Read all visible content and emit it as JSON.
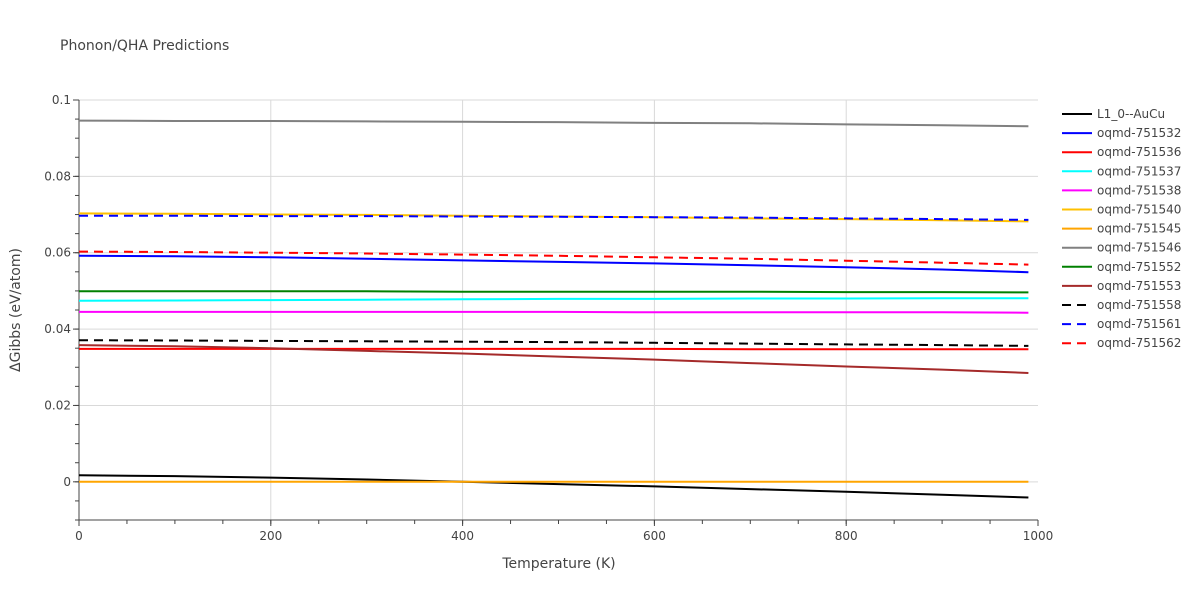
{
  "chart_data": {
    "type": "line",
    "title": "Phonon/QHA Predictions",
    "xlabel": "Temperature (K)",
    "ylabel": "ΔGibbs (eV/atom)",
    "xlim": [
      0,
      1000
    ],
    "ylim": [
      -0.01,
      0.1
    ],
    "xticks": [
      0,
      200,
      400,
      600,
      800,
      1000
    ],
    "xtick_labels": [
      "0",
      "200",
      "400",
      "600",
      "800",
      "1000"
    ],
    "yticks": [
      0,
      0.02,
      0.04,
      0.06,
      0.08,
      0.1
    ],
    "ytick_labels": [
      "0",
      "0.02",
      "0.04",
      "0.06",
      "0.08",
      "0.1"
    ],
    "grid": true,
    "legend_position": "right",
    "x": [
      0,
      100,
      200,
      300,
      400,
      500,
      600,
      700,
      800,
      900,
      990
    ],
    "series": [
      {
        "name": "L1_0--AuCu",
        "color": "#000000",
        "dash": "solid",
        "values": [
          0.0017,
          0.0015,
          0.0011,
          0.0006,
          0.0,
          -0.0006,
          -0.0012,
          -0.0019,
          -0.0026,
          -0.0034,
          -0.0041
        ]
      },
      {
        "name": "oqmd-751532",
        "color": "#0000ff",
        "dash": "solid",
        "values": [
          0.0592,
          0.0591,
          0.0588,
          0.0584,
          0.058,
          0.0576,
          0.0572,
          0.0567,
          0.0562,
          0.0556,
          0.0549
        ]
      },
      {
        "name": "oqmd-751536",
        "color": "#ff0000",
        "dash": "solid",
        "values": [
          0.0348,
          0.0348,
          0.0348,
          0.0348,
          0.0348,
          0.0348,
          0.0348,
          0.0347,
          0.0347,
          0.0347,
          0.0347
        ]
      },
      {
        "name": "oqmd-751537",
        "color": "#00ffff",
        "dash": "solid",
        "values": [
          0.0474,
          0.0475,
          0.0476,
          0.0477,
          0.0478,
          0.0479,
          0.0479,
          0.048,
          0.048,
          0.0481,
          0.0481
        ]
      },
      {
        "name": "oqmd-751538",
        "color": "#ff00ff",
        "dash": "solid",
        "values": [
          0.0445,
          0.0445,
          0.0445,
          0.0445,
          0.0445,
          0.0445,
          0.0444,
          0.0444,
          0.0444,
          0.0444,
          0.0443
        ]
      },
      {
        "name": "oqmd-751540",
        "color": "#ffc000",
        "dash": "solid",
        "values": [
          0.0703,
          0.0702,
          0.07,
          0.0699,
          0.0697,
          0.0695,
          0.0693,
          0.069,
          0.0688,
          0.0685,
          0.0682
        ]
      },
      {
        "name": "oqmd-751545",
        "color": "#ffa500",
        "dash": "solid",
        "values": [
          0.0,
          0.0,
          0.0,
          0.0,
          0.0,
          0.0,
          0.0,
          0.0,
          0.0,
          0.0,
          0.0
        ]
      },
      {
        "name": "oqmd-751546",
        "color": "#808080",
        "dash": "solid",
        "values": [
          0.0946,
          0.0945,
          0.0945,
          0.0944,
          0.0943,
          0.0942,
          0.094,
          0.0939,
          0.0936,
          0.0934,
          0.0931
        ]
      },
      {
        "name": "oqmd-751552",
        "color": "#008000",
        "dash": "solid",
        "values": [
          0.0499,
          0.0499,
          0.0499,
          0.0499,
          0.0498,
          0.0498,
          0.0498,
          0.0498,
          0.0497,
          0.0497,
          0.0496
        ]
      },
      {
        "name": "oqmd-751553",
        "color": "#a52a2a",
        "dash": "solid",
        "values": [
          0.0358,
          0.0355,
          0.035,
          0.0343,
          0.0336,
          0.0328,
          0.032,
          0.0311,
          0.0302,
          0.0294,
          0.0285
        ]
      },
      {
        "name": "oqmd-751558",
        "color": "#000000",
        "dash": "dash",
        "values": [
          0.0371,
          0.037,
          0.0369,
          0.0368,
          0.0367,
          0.0366,
          0.0364,
          0.0362,
          0.036,
          0.0358,
          0.0356
        ]
      },
      {
        "name": "oqmd-751561",
        "color": "#0000ff",
        "dash": "dash",
        "values": [
          0.0697,
          0.0697,
          0.0696,
          0.0696,
          0.0695,
          0.0694,
          0.0693,
          0.0692,
          0.069,
          0.0688,
          0.0686
        ]
      },
      {
        "name": "oqmd-751562",
        "color": "#ff0000",
        "dash": "dash",
        "values": [
          0.0603,
          0.0602,
          0.06,
          0.0598,
          0.0595,
          0.0592,
          0.0588,
          0.0584,
          0.0579,
          0.0574,
          0.0569
        ]
      }
    ]
  }
}
